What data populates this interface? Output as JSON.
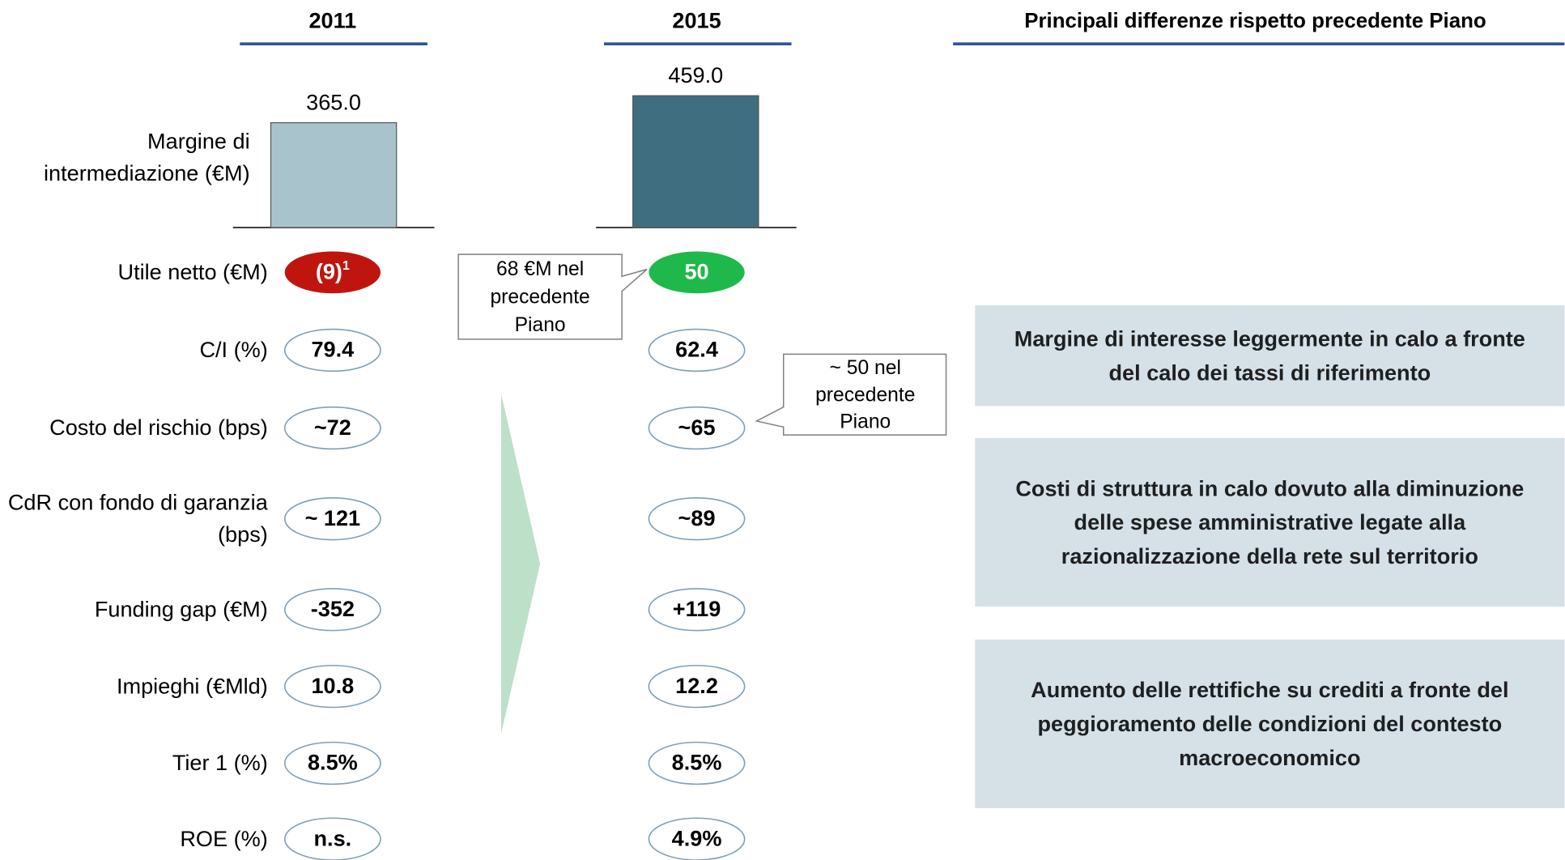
{
  "columns": {
    "first": "2011",
    "second": "2015",
    "notes": "Principali differenze rispetto precedente Piano"
  },
  "chart_data": {
    "type": "bar",
    "label": "Margine di intermediazione (€M)",
    "values": [
      365.0,
      459.0
    ],
    "value_labels": [
      "365.0",
      "459.0"
    ],
    "colors": [
      "#a9c3cd",
      "#3f6e80"
    ]
  },
  "rows": [
    {
      "label": "Utile netto (€M)",
      "v2011": "(9)",
      "footnote": "1",
      "v2015": "50",
      "fill2011": "#c0150e",
      "fill2015": "#1eb94a"
    },
    {
      "label": "C/I (%)",
      "v2011": "79.4",
      "v2015": "62.4"
    },
    {
      "label": "Costo del rischio (bps)",
      "v2011": "~72",
      "v2015": "~65"
    },
    {
      "label": "CdR con fondo di garanzia (bps)",
      "v2011": "~ 121",
      "v2015": "~89"
    },
    {
      "label": "Funding gap (€M)",
      "v2011": "-352",
      "v2015": "+119"
    },
    {
      "label": "Impieghi (€Mld)",
      "v2011": "10.8",
      "v2015": "12.2"
    },
    {
      "label": "Tier 1 (%)",
      "v2011": "8.5%",
      "v2015": "8.5%"
    },
    {
      "label": "ROE (%)",
      "v2011": "n.s.",
      "v2015": "4.9%"
    }
  ],
  "callouts": [
    "68 €M nel precedente Piano",
    "~ 50 nel precedente Piano"
  ],
  "notes": [
    "Margine di interesse leggermente in calo a fronte del calo dei tassi di riferimento",
    "Costi di struttura in calo dovuto alla diminuzione delle spese amministrative legate alla razionalizzazione della rete sul territorio",
    "Aumento delle rettifiche su crediti a fronte del peggioramento delle condizioni del contesto macroeconomico"
  ]
}
